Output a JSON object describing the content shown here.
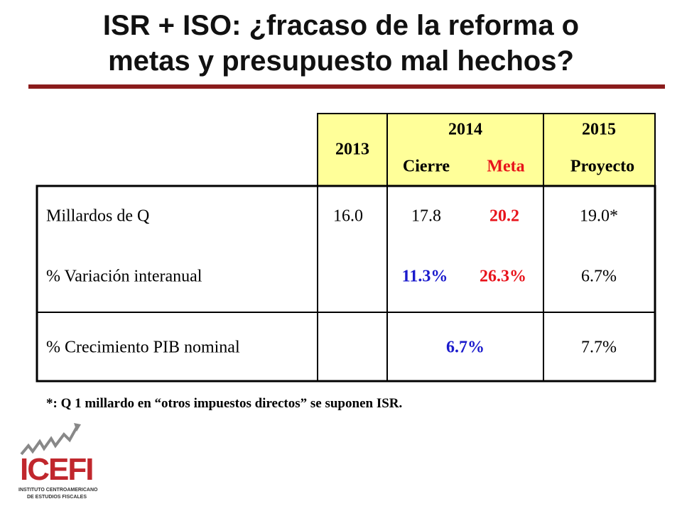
{
  "header": {
    "title": [
      "ISR + ISO: ¿fracaso de la reforma o",
      "metas y presupuesto mal hechos?"
    ]
  },
  "table": {
    "header": {
      "y2013": "2013",
      "y2014": "2014",
      "y2015": "2015",
      "cierre": "Cierre",
      "meta": "Meta",
      "proyecto": "Proyecto"
    },
    "rows": [
      {
        "label": "Millardos de Q",
        "y2013": "16.0",
        "cierre": "17.8",
        "meta": "20.2",
        "y2015": "19.0*"
      },
      {
        "label": "% Variación interanual",
        "cierre": "11.3%",
        "meta": "26.3%",
        "y2015": "6.7%"
      },
      {
        "label": "% Crecimiento PIB nominal",
        "y2014": "6.7%",
        "y2015": "7.7%"
      }
    ]
  },
  "footnote": "*: Q 1 millardo en “otros impuestos directos” se suponen ISR.",
  "logo": {
    "name": "ICEFI",
    "line1": "INSTITUTO CENTROAMERICANO",
    "line2": "DE ESTUDIOS FISCALES"
  }
}
